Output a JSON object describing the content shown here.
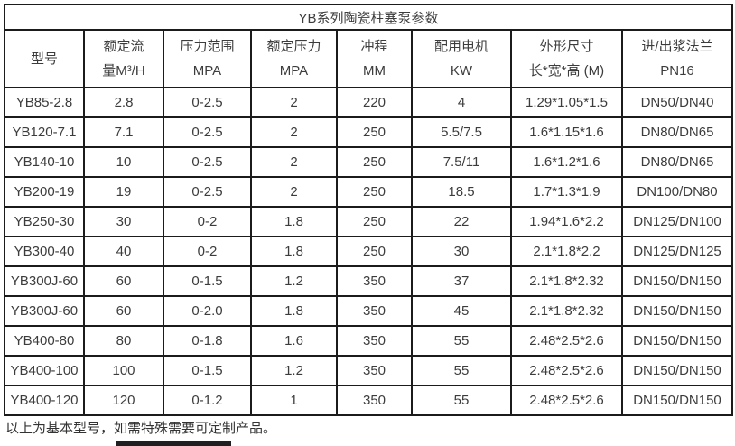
{
  "title": "YB系列陶瓷柱塞泵参数",
  "table": {
    "columns": [
      {
        "line1": "型号",
        "line2": ""
      },
      {
        "line1": "额定流",
        "line2": "量M³/H"
      },
      {
        "line1": "压力范围",
        "line2": "MPA"
      },
      {
        "line1": "额定压力",
        "line2": "MPA"
      },
      {
        "line1": "冲程",
        "line2": "MM"
      },
      {
        "line1": "配用电机",
        "line2": "KW"
      },
      {
        "line1": "外形尺寸",
        "line2": "长*宽*高 (M)"
      },
      {
        "line1": "进/出浆法兰",
        "line2": "PN16"
      }
    ],
    "rows": [
      [
        "YB85-2.8",
        "2.8",
        "0-2.5",
        "2",
        "220",
        "4",
        "1.29*1.05*1.5",
        "DN50/DN40"
      ],
      [
        "YB120-7.1",
        "7.1",
        "0-2.5",
        "2",
        "250",
        "5.5/7.5",
        "1.6*1.15*1.6",
        "DN80/DN65"
      ],
      [
        "YB140-10",
        "10",
        "0-2.5",
        "2",
        "250",
        "7.5/11",
        "1.6*1.2*1.6",
        "DN80/DN65"
      ],
      [
        "YB200-19",
        "19",
        "0-2.5",
        "2",
        "250",
        "18.5",
        "1.7*1.3*1.9",
        "DN100/DN80"
      ],
      [
        "YB250-30",
        "30",
        "0-2",
        "1.8",
        "250",
        "22",
        "1.94*1.6*2.2",
        "DN125/DN100"
      ],
      [
        "YB300-40",
        "40",
        "0-2",
        "1.8",
        "250",
        "30",
        "2.1*1.8*2.2",
        "DN125/DN125"
      ],
      [
        "YB300J-60",
        "60",
        "0-1.5",
        "1.2",
        "350",
        "37",
        "2.1*1.8*2.32",
        "DN150/DN150"
      ],
      [
        "YB300J-60",
        "60",
        "0-2.0",
        "1.8",
        "350",
        "45",
        "2.1*1.8*2.32",
        "DN150/DN150"
      ],
      [
        "YB400-80",
        "80",
        "0-1.8",
        "1.6",
        "350",
        "55",
        "2.48*2.5*2.6",
        "DN150/DN150"
      ],
      [
        "YB400-100",
        "100",
        "0-1.5",
        "1.2",
        "350",
        "55",
        "2.48*2.5*2.6",
        "DN150/DN150"
      ],
      [
        "YB400-120",
        "120",
        "0-1.2",
        "1",
        "350",
        "55",
        "2.48*2.5*2.6",
        "DN150/DN150"
      ]
    ]
  },
  "footer": {
    "note": "以上为基本型号，如需特殊需要可定制产品。"
  },
  "colors": {
    "border": "#1b1b1b",
    "text": "#3c3c3c",
    "partial_bar": "#1f1f1f"
  }
}
